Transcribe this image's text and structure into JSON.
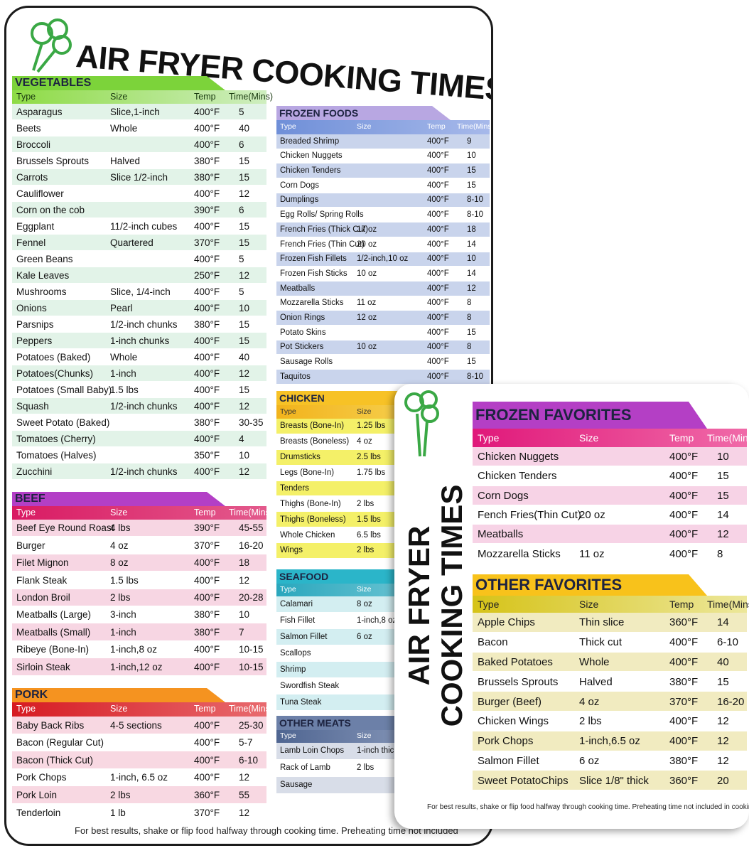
{
  "big_card": {
    "title": "AIR FRYER COOKING TIMES",
    "sections": [
      {
        "title": "VEGETABLES",
        "columns": [
          "Type",
          "Size",
          "Temp",
          "Time(Mins)"
        ],
        "rows": [
          [
            "Asparagus",
            "Slice,1-inch",
            "400°F",
            "5"
          ],
          [
            "Beets",
            "Whole",
            "400°F",
            "40"
          ],
          [
            "Broccoli",
            null,
            "400°F",
            "6"
          ],
          [
            "Brussels Sprouts",
            "Halved",
            "380°F",
            "15"
          ],
          [
            "Carrots",
            "Slice 1/2-inch",
            "380°F",
            "15"
          ],
          [
            "Cauliflower",
            null,
            "400°F",
            "12"
          ],
          [
            "Corn on the cob",
            null,
            "390°F",
            "6"
          ],
          [
            "Eggplant",
            "11/2-inch cubes",
            "400°F",
            "15"
          ],
          [
            "Fennel",
            "Quartered",
            "370°F",
            "15"
          ],
          [
            "Green Beans",
            null,
            "400°F",
            "5"
          ],
          [
            "Kale Leaves",
            null,
            "250°F",
            "12"
          ],
          [
            "Mushrooms",
            "Slice, 1/4-inch",
            "400°F",
            "5"
          ],
          [
            "Onions",
            "Pearl",
            "400°F",
            "10"
          ],
          [
            "Parsnips",
            "1/2-inch chunks",
            "380°F",
            "15"
          ],
          [
            "Peppers",
            "1-inch chunks",
            "400°F",
            "15"
          ],
          [
            "Potatoes (Baked)",
            "Whole",
            "400°F",
            "40"
          ],
          [
            "Potatoes(Chunks)",
            "1-inch",
            "400°F",
            "12"
          ],
          [
            "Potatoes (Small Baby)",
            "1.5 lbs",
            "400°F",
            "15"
          ],
          [
            "Squash",
            "1/2-inch chunks",
            "400°F",
            "12"
          ],
          [
            "Sweet Potato (Baked)",
            null,
            "380°F",
            "30-35"
          ],
          [
            "Tomatoes (Cherry)",
            null,
            "400°F",
            "4"
          ],
          [
            "Tomatoes (Halves)",
            null,
            "350°F",
            "10"
          ],
          [
            "Zucchini",
            "1/2-inch chunks",
            "400°F",
            "12"
          ]
        ]
      },
      {
        "title": "BEEF",
        "columns": [
          "Type",
          "Size",
          "Temp",
          "Time(Mins)"
        ],
        "rows": [
          [
            "Beef Eye Round Roast",
            "4 lbs",
            "390°F",
            "45-55"
          ],
          [
            "Burger",
            "4 oz",
            "370°F",
            "16-20"
          ],
          [
            "Filet Mignon",
            "8 oz",
            "400°F",
            "18"
          ],
          [
            "Flank Steak",
            "1.5 lbs",
            "400°F",
            "12"
          ],
          [
            "London Broil",
            "2 lbs",
            "400°F",
            "20-28"
          ],
          [
            "Meatballs (Large)",
            "3-inch",
            "380°F",
            "10"
          ],
          [
            "Meatballs (Small)",
            "1-inch",
            "380°F",
            "7"
          ],
          [
            "Ribeye (Bone-In)",
            "1-inch,8 oz",
            "400°F",
            "10-15"
          ],
          [
            "Sirloin Steak",
            "1-inch,12 oz",
            "400°F",
            "10-15"
          ]
        ]
      },
      {
        "title": "PORK",
        "columns": [
          "Type",
          "Size",
          "Temp",
          "Time(Mins)"
        ],
        "rows": [
          [
            "Baby Back Ribs",
            "4-5 sections",
            "400°F",
            "25-30"
          ],
          [
            "Bacon (Regular Cut)",
            null,
            "400°F",
            "5-7"
          ],
          [
            "Bacon (Thick Cut)",
            null,
            "400°F",
            "6-10"
          ],
          [
            "Pork Chops",
            "1-inch, 6.5 oz",
            "400°F",
            "12"
          ],
          [
            "Pork Loin",
            "2 lbs",
            "360°F",
            "55"
          ],
          [
            "Tenderloin",
            "1 lb",
            "370°F",
            "12"
          ]
        ]
      },
      {
        "title": "FROZEN FOODS",
        "columns": [
          "Type",
          "Size",
          "Temp",
          "Time(Mins)"
        ],
        "rows": [
          [
            "Breaded Shrimp",
            null,
            "400°F",
            "9"
          ],
          [
            "Chicken Nuggets",
            null,
            "400°F",
            "10"
          ],
          [
            "Chicken Tenders",
            null,
            "400°F",
            "15"
          ],
          [
            "Corn Dogs",
            null,
            "400°F",
            "15"
          ],
          [
            "Dumplings",
            null,
            "400°F",
            "8-10"
          ],
          [
            "Egg Rolls/ Spring Rolls",
            null,
            "400°F",
            "8-10"
          ],
          [
            "French Fries (Thick Cut)",
            "17 oz",
            "400°F",
            "18"
          ],
          [
            "French Fries (Thin Cut)",
            "20 oz",
            "400°F",
            "14"
          ],
          [
            "Frozen Fish Fillets",
            "1/2-inch,10 oz",
            "400°F",
            "10"
          ],
          [
            "Frozen Fish Sticks",
            "10 oz",
            "400°F",
            "14"
          ],
          [
            "Meatballs",
            null,
            "400°F",
            "12"
          ],
          [
            "Mozzarella Sticks",
            "11 oz",
            "400°F",
            "8"
          ],
          [
            "Onion Rings",
            "12 oz",
            "400°F",
            "8"
          ],
          [
            "Potato Skins",
            null,
            "400°F",
            "15"
          ],
          [
            "Pot Stickers",
            "10 oz",
            "400°F",
            "8"
          ],
          [
            "Sausage Rolls",
            null,
            "400°F",
            "15"
          ],
          [
            "Taquitos",
            null,
            "400°F",
            "8-10"
          ]
        ]
      },
      {
        "title": "CHICKEN",
        "columns": [
          "Type",
          "Size"
        ],
        "rows": [
          [
            "Breasts (Bone-In)",
            "1.25 lbs"
          ],
          [
            "Breasts (Boneless)",
            "4 oz"
          ],
          [
            "Drumsticks",
            "2.5 lbs"
          ],
          [
            "Legs (Bone-In)",
            "1.75 lbs"
          ],
          [
            "Tenders",
            null
          ],
          [
            "Thighs (Bone-In)",
            "2 lbs"
          ],
          [
            "Thighs (Boneless)",
            "1.5 lbs"
          ],
          [
            "Whole Chicken",
            "6.5 lbs"
          ],
          [
            "Wings",
            "2 lbs"
          ]
        ]
      },
      {
        "title": "SEAFOOD",
        "columns": [
          "Type",
          "Size"
        ],
        "rows": [
          [
            "Calamari",
            "8 oz"
          ],
          [
            "Fish Fillet",
            "1-inch,8 oz"
          ],
          [
            "Salmon Fillet",
            "6 oz"
          ],
          [
            "Scallops",
            null
          ],
          [
            "Shrimp",
            null
          ],
          [
            "Swordfish Steak",
            null
          ],
          [
            "Tuna Steak",
            null
          ]
        ]
      },
      {
        "title": "OTHER MEATS",
        "columns": [
          "Type",
          "Size"
        ],
        "rows": [
          [
            "Lamb Loin Chops",
            "1-inch thick"
          ],
          [
            "Rack of Lamb",
            "2 lbs"
          ],
          [
            "Sausage",
            null
          ]
        ]
      }
    ],
    "footer": "For best results, shake or flip food halfway through cooking time. Preheating time not included"
  },
  "small_card": {
    "title_lines": [
      "AIR FRYER",
      "COOKING TIMES"
    ],
    "sections": [
      {
        "title": "FROZEN FAVORITES",
        "columns": [
          "Type",
          "Size",
          "Temp",
          "Time(Mins)"
        ],
        "rows": [
          [
            "Chicken Nuggets",
            null,
            "400°F",
            "10"
          ],
          [
            "Chicken Tenders",
            null,
            "400°F",
            "15"
          ],
          [
            "Corn Dogs",
            null,
            "400°F",
            "15"
          ],
          [
            "Fench Fries(Thin Cut)",
            "20 oz",
            "400°F",
            "14"
          ],
          [
            "Meatballs",
            null,
            "400°F",
            "12"
          ],
          [
            "Mozzarella Sticks",
            "11 oz",
            "400°F",
            "8"
          ]
        ]
      },
      {
        "title": "OTHER FAVORITES",
        "columns": [
          "Type",
          "Size",
          "Temp",
          "Time(Mins)"
        ],
        "rows": [
          [
            "Apple Chips",
            "Thin slice",
            "360°F",
            "14"
          ],
          [
            "Bacon",
            "Thick cut",
            "400°F",
            "6-10"
          ],
          [
            "Baked Potatoes",
            "Whole",
            "400°F",
            "40"
          ],
          [
            "Brussels Sprouts",
            "Halved",
            "380°F",
            "15"
          ],
          [
            "Burger (Beef)",
            "4 oz",
            "370°F",
            "16-20"
          ],
          [
            "Chicken Wings",
            "2 lbs",
            "400°F",
            "12"
          ],
          [
            "Pork Chops",
            "1-inch,6.5 oz",
            "400°F",
            "12"
          ],
          [
            "Salmon Fillet",
            "6 oz",
            "380°F",
            "12"
          ],
          [
            "Sweet PotatoChips",
            "Slice 1/8\" thick",
            "360°F",
            "20"
          ]
        ]
      }
    ],
    "footer": "For best results, shake or flip food halfway through cooking time. Preheating time not included in cooking time."
  }
}
